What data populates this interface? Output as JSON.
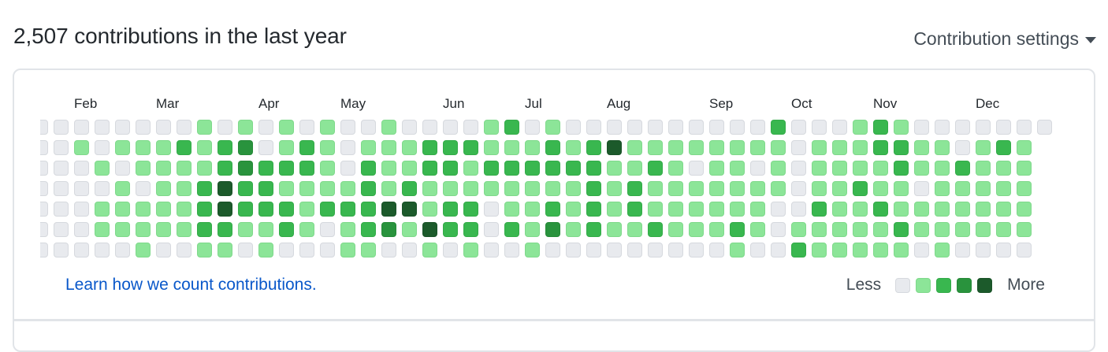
{
  "header": {
    "title": "2,507 contributions in the last year",
    "settings_label": "Contribution settings",
    "settings_icon": "caret-down-icon"
  },
  "calendar": {
    "months": [
      {
        "label": "Feb",
        "col": 2
      },
      {
        "label": "Mar",
        "col": 6
      },
      {
        "label": "Apr",
        "col": 11
      },
      {
        "label": "May",
        "col": 15
      },
      {
        "label": "Jun",
        "col": 20
      },
      {
        "label": "Jul",
        "col": 24
      },
      {
        "label": "Aug",
        "col": 28
      },
      {
        "label": "Sep",
        "col": 33
      },
      {
        "label": "Oct",
        "col": 37
      },
      {
        "label": "Nov",
        "col": 41
      },
      {
        "label": "Dec",
        "col": 46
      }
    ],
    "weeks": [
      [
        0,
        0,
        0,
        0,
        0,
        0,
        0
      ],
      [
        0,
        0,
        0,
        0,
        0,
        0,
        0
      ],
      [
        0,
        1,
        0,
        0,
        0,
        0,
        0
      ],
      [
        0,
        0,
        1,
        0,
        1,
        1,
        0
      ],
      [
        0,
        1,
        0,
        1,
        1,
        1,
        0
      ],
      [
        0,
        1,
        1,
        0,
        1,
        1,
        1
      ],
      [
        0,
        1,
        1,
        1,
        1,
        1,
        0
      ],
      [
        0,
        2,
        1,
        1,
        1,
        1,
        0
      ],
      [
        1,
        1,
        1,
        2,
        2,
        2,
        1
      ],
      [
        0,
        2,
        2,
        4,
        4,
        2,
        1
      ],
      [
        1,
        3,
        3,
        2,
        2,
        1,
        0
      ],
      [
        0,
        0,
        2,
        2,
        2,
        1,
        1
      ],
      [
        1,
        1,
        2,
        1,
        2,
        2,
        0
      ],
      [
        0,
        2,
        2,
        1,
        1,
        1,
        0
      ],
      [
        1,
        1,
        1,
        1,
        2,
        0,
        0
      ],
      [
        0,
        0,
        0,
        1,
        2,
        1,
        1
      ],
      [
        0,
        1,
        2,
        2,
        2,
        2,
        1
      ],
      [
        1,
        1,
        1,
        1,
        4,
        3,
        0
      ],
      [
        0,
        1,
        1,
        2,
        4,
        1,
        0
      ],
      [
        0,
        2,
        2,
        1,
        1,
        4,
        1
      ],
      [
        0,
        2,
        2,
        1,
        2,
        2,
        0
      ],
      [
        0,
        2,
        1,
        1,
        2,
        2,
        1
      ],
      [
        1,
        1,
        2,
        1,
        0,
        0,
        0
      ],
      [
        2,
        1,
        2,
        1,
        1,
        2,
        0
      ],
      [
        0,
        1,
        2,
        1,
        1,
        1,
        1
      ],
      [
        1,
        2,
        2,
        1,
        2,
        3,
        0
      ],
      [
        0,
        1,
        2,
        1,
        1,
        1,
        0
      ],
      [
        0,
        2,
        2,
        2,
        2,
        2,
        0
      ],
      [
        0,
        4,
        1,
        1,
        1,
        1,
        0
      ],
      [
        0,
        1,
        1,
        2,
        2,
        1,
        0
      ],
      [
        0,
        1,
        2,
        1,
        1,
        2,
        0
      ],
      [
        0,
        1,
        1,
        1,
        1,
        1,
        0
      ],
      [
        0,
        1,
        0,
        1,
        1,
        1,
        0
      ],
      [
        0,
        1,
        1,
        1,
        1,
        1,
        0
      ],
      [
        0,
        1,
        1,
        1,
        1,
        2,
        1
      ],
      [
        0,
        1,
        0,
        1,
        1,
        1,
        0
      ],
      [
        2,
        1,
        1,
        1,
        0,
        0,
        0
      ],
      [
        0,
        0,
        0,
        0,
        0,
        1,
        2
      ],
      [
        0,
        1,
        1,
        1,
        2,
        1,
        1
      ],
      [
        0,
        1,
        1,
        1,
        1,
        1,
        1
      ],
      [
        1,
        1,
        1,
        2,
        1,
        1,
        1
      ],
      [
        2,
        2,
        1,
        1,
        2,
        1,
        1
      ],
      [
        1,
        2,
        2,
        1,
        1,
        2,
        1
      ],
      [
        0,
        1,
        1,
        0,
        1,
        1,
        0
      ],
      [
        0,
        1,
        1,
        1,
        1,
        1,
        1
      ],
      [
        0,
        0,
        2,
        1,
        1,
        1,
        0
      ],
      [
        0,
        1,
        1,
        1,
        1,
        1,
        0
      ],
      [
        0,
        2,
        1,
        1,
        1,
        1,
        0
      ],
      [
        0,
        1,
        1,
        1,
        1,
        1,
        0
      ],
      [
        0
      ]
    ],
    "level_colors": [
      "#e8eaee",
      "#8ce598",
      "#39b74f",
      "#29933d",
      "#1c5a2b"
    ]
  },
  "footer": {
    "learn_link": "Learn how we count contributions.",
    "legend_less": "Less",
    "legend_more": "More"
  }
}
